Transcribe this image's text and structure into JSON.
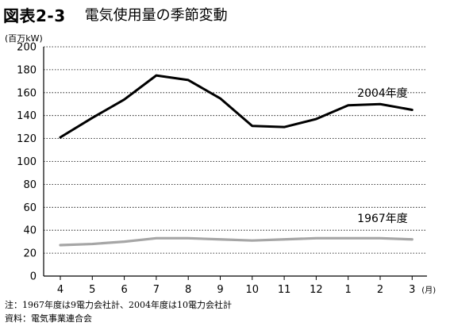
{
  "figure": {
    "label": "図表2-3",
    "title": "電気使用量の季節変動",
    "unit": "(百万kW)",
    "notes": [
      "注：1967年度は9電力会社計、2004年度は10電力会社計",
      "資料：電気事業連合会"
    ]
  },
  "chart_data": {
    "type": "line",
    "title": "電気使用量の季節変動",
    "ylabel": "(百万kW)",
    "xlabel": "(月)",
    "categories": [
      "4",
      "5",
      "6",
      "7",
      "8",
      "9",
      "10",
      "11",
      "12",
      "1",
      "2",
      "3"
    ],
    "ylim": [
      0,
      200
    ],
    "yticks": [
      0,
      20,
      40,
      60,
      80,
      100,
      120,
      140,
      160,
      180,
      200
    ],
    "grid": "horizontal",
    "series": [
      {
        "name": "2004年度",
        "color": "#000000",
        "values": [
          121,
          138,
          154,
          175,
          171,
          155,
          131,
          130,
          137,
          149,
          150,
          145
        ]
      },
      {
        "name": "1967年度",
        "color": "#a6a6a6",
        "values": [
          27,
          28,
          30,
          33,
          33,
          32,
          31,
          32,
          33,
          33,
          33,
          32
        ]
      }
    ]
  }
}
